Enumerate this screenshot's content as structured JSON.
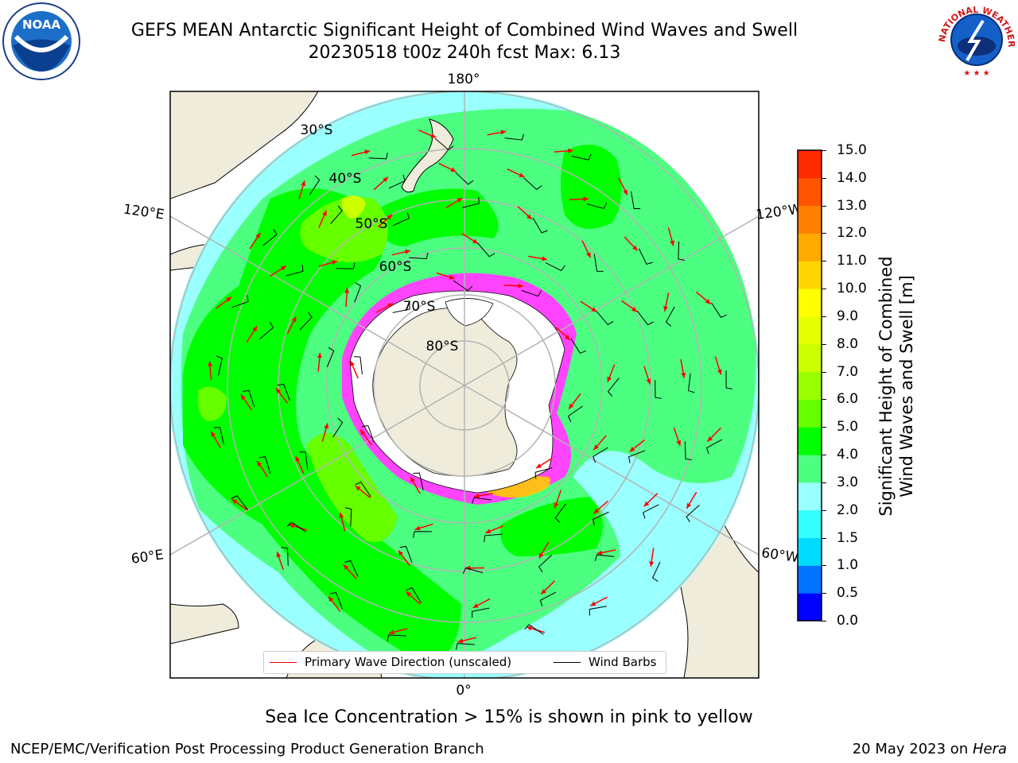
{
  "header": {
    "title_line1": "GEFS MEAN Antarctic Significant Height of Combined Wind Waves and Swell",
    "title_line2": "20230518 t00z 240h fcst   Max: 6.13"
  },
  "logos": {
    "left": {
      "icon": "noaa-logo-icon",
      "text": "NOAA"
    },
    "right": {
      "icon": "national-weather-service-logo-icon",
      "text": "NATIONAL WEATHER SERVICE"
    }
  },
  "map": {
    "longitude_labels": [
      "180°",
      "120°E",
      "120°W",
      "60°E",
      "60°W",
      "0°"
    ],
    "latitude_labels": [
      "30°S",
      "40°S",
      "50°S",
      "60°S",
      "70°S",
      "80°S"
    ]
  },
  "legend": {
    "items": [
      {
        "label": "Primary Wave Direction (unscaled)",
        "color": "#ff0000"
      },
      {
        "label": "Wind Barbs",
        "color": "#000000"
      }
    ]
  },
  "colorbar": {
    "title_line1": "Significant Height of Combined",
    "title_line2": "Wind Waves and Swell [m]",
    "ticks": [
      "0.0",
      "0.5",
      "1.0",
      "1.5",
      "2.0",
      "3.0",
      "4.0",
      "5.0",
      "6.0",
      "7.0",
      "8.0",
      "9.0",
      "10.0",
      "11.0",
      "12.0",
      "13.0",
      "14.0",
      "15.0"
    ],
    "colors": [
      "#0000ff",
      "#0073ff",
      "#00dcff",
      "#33ffff",
      "#99ffff",
      "#4dff80",
      "#00ff00",
      "#66ff00",
      "#99ff00",
      "#ccff00",
      "#e6ff00",
      "#ffff00",
      "#ffd700",
      "#ffaa00",
      "#ff8000",
      "#ff5500",
      "#ff2a00",
      "#ff0000"
    ]
  },
  "colors": {
    "land": "#efecdc",
    "ice_fringe": "#ff44ff",
    "ocean_lightblue": "#99ffff",
    "wave_green": "#4dff80"
  },
  "footer": {
    "note": "Sea Ice Concentration > 15% is shown in pink to yellow",
    "left": "NCEP/EMC/Verification Post Processing Product Generation Branch",
    "right_prefix": "20 May 2023 on ",
    "right_host": "Hera"
  }
}
